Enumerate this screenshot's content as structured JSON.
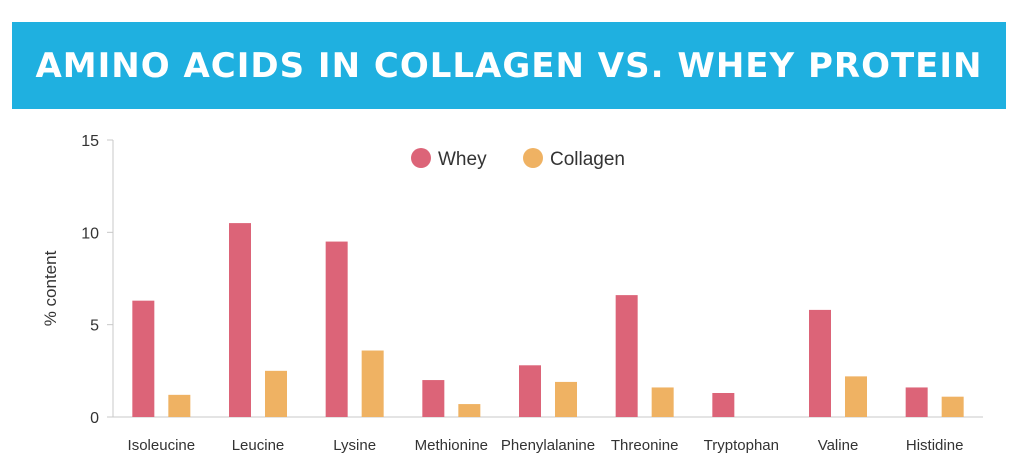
{
  "colors": {
    "banner": "#1fb0e0",
    "whey": "#dc6478",
    "collagen": "#efb263",
    "axis": "#c8c8c8"
  },
  "chart_data": {
    "type": "bar",
    "title": "AMINO ACIDS IN COLLAGEN VS. WHEY PROTEIN",
    "xlabel": "",
    "ylabel": "% content",
    "ylim": [
      0,
      15
    ],
    "yticks": [
      0,
      5,
      10,
      15
    ],
    "legend_position": "top-center",
    "grid": false,
    "categories": [
      "Isoleucine",
      "Leucine",
      "Lysine",
      "Methionine",
      "Phenylalanine",
      "Threonine",
      "Tryptophan",
      "Valine",
      "Histidine"
    ],
    "series": [
      {
        "name": "Whey",
        "color": "#dc6478",
        "values": [
          6.3,
          10.5,
          9.5,
          2.0,
          2.8,
          6.6,
          1.3,
          5.8,
          1.6
        ]
      },
      {
        "name": "Collagen",
        "color": "#efb263",
        "values": [
          1.2,
          2.5,
          3.6,
          0.7,
          1.9,
          1.6,
          0,
          2.2,
          1.1
        ]
      }
    ]
  }
}
